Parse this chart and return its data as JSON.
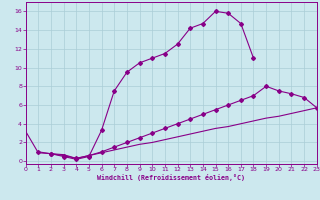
{
  "xlabel": "Windchill (Refroidissement éolien,°C)",
  "xlim": [
    0,
    23
  ],
  "ylim": [
    -0.3,
    17
  ],
  "xticks": [
    0,
    1,
    2,
    3,
    4,
    5,
    6,
    7,
    8,
    9,
    10,
    11,
    12,
    13,
    14,
    15,
    16,
    17,
    18,
    19,
    20,
    21,
    22,
    23
  ],
  "yticks": [
    0,
    2,
    4,
    6,
    8,
    10,
    12,
    14,
    16
  ],
  "bg_color": "#cce8ee",
  "grid_color": "#aacdd6",
  "line_color": "#880088",
  "curve1_x": [
    1,
    2,
    3,
    4,
    5,
    6,
    7,
    8,
    9,
    10,
    11,
    12,
    13,
    14,
    15,
    16,
    17,
    18
  ],
  "curve1_y": [
    1.0,
    0.8,
    0.5,
    0.2,
    0.5,
    3.3,
    7.5,
    9.5,
    10.5,
    11.0,
    11.5,
    12.5,
    14.2,
    14.7,
    16.0,
    15.8,
    14.7,
    11.0
  ],
  "curve2_x": [
    0,
    1,
    2,
    3,
    4,
    5,
    6,
    7,
    8,
    9,
    10,
    11,
    12,
    13,
    14,
    15,
    16,
    17,
    18,
    19,
    20,
    21,
    22,
    23
  ],
  "curve2_y": [
    3.2,
    0.9,
    0.8,
    0.7,
    0.3,
    0.6,
    0.9,
    1.2,
    1.5,
    1.8,
    2.0,
    2.3,
    2.6,
    2.9,
    3.2,
    3.5,
    3.7,
    4.0,
    4.3,
    4.6,
    4.8,
    5.1,
    5.4,
    5.7
  ],
  "curve3_x": [
    2,
    3,
    4,
    5,
    6,
    7,
    8,
    9,
    10,
    11,
    12,
    13,
    14,
    15,
    16,
    17,
    18,
    19,
    20,
    21,
    22,
    23
  ],
  "curve3_y": [
    0.8,
    0.6,
    0.3,
    0.6,
    1.0,
    1.5,
    2.0,
    2.5,
    3.0,
    3.5,
    4.0,
    4.5,
    5.0,
    5.5,
    6.0,
    6.5,
    7.0,
    8.0,
    7.5,
    7.2,
    6.8,
    5.7
  ]
}
